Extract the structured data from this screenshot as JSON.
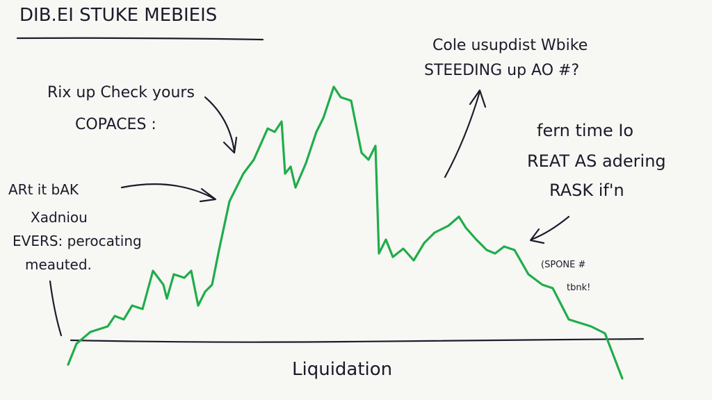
{
  "title": "DIB.EI STUKE MEBIEIS",
  "annotations": [
    {
      "lines": [
        "Rix up Check yours",
        "COPACES :"
      ]
    },
    {
      "lines": [
        "ARt it bAK",
        "Xadniou",
        "EVERS: perocating",
        "meauted."
      ]
    },
    {
      "lines": [
        "Cole usupdist Wbike",
        "STEEDING up AO #?"
      ]
    },
    {
      "lines": [
        "fern time Io",
        "REAT AS adering",
        "RASK if'n"
      ]
    },
    {
      "lines": [
        "(SPONE #",
        "tbnk!"
      ]
    }
  ],
  "baseline_label": "Liquidation"
}
